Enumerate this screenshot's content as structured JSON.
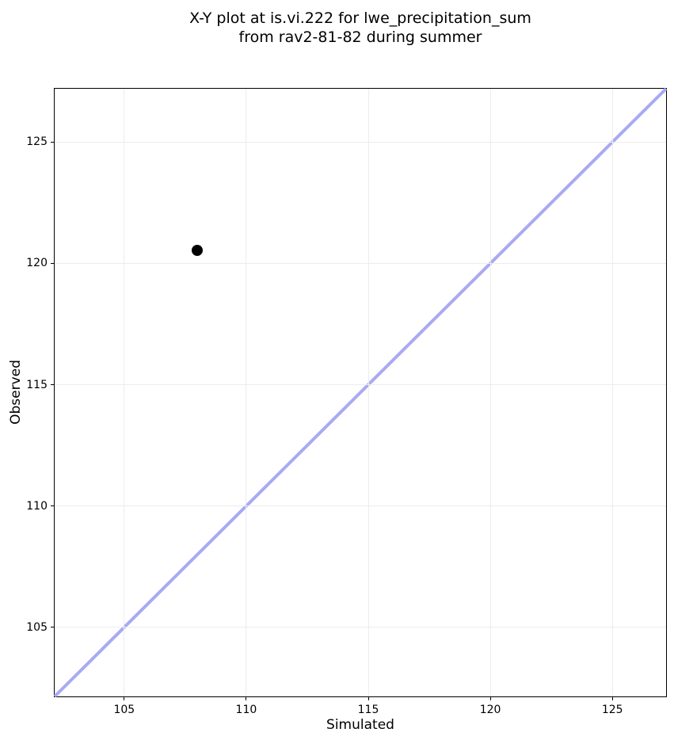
{
  "chart_data": {
    "type": "scatter",
    "title": "X-Y plot at is.vi.222 for lwe_precipitation_sum\nfrom rav2-81-82 during summer",
    "title_lines": [
      "X-Y plot at is.vi.222 for lwe_precipitation_sum",
      "from rav2-81-82 during summer"
    ],
    "xlabel": "Simulated",
    "ylabel": "Observed",
    "xlim": [
      102.15,
      127.2
    ],
    "ylim": [
      102.15,
      127.2
    ],
    "xticks": [
      105,
      110,
      115,
      120,
      125
    ],
    "yticks": [
      105,
      110,
      115,
      120,
      125
    ],
    "grid": true,
    "legend": "none",
    "series": [
      {
        "name": "observed-vs-simulated-points",
        "marker": "circle",
        "color": "#000000",
        "points": [
          {
            "x": 108.0,
            "y": 120.55
          }
        ]
      }
    ],
    "identity_line": {
      "from": [
        102.15,
        102.15
      ],
      "to": [
        127.2,
        127.2
      ],
      "color": "#a8aaf2",
      "width": 4
    },
    "colors": {
      "grid": "#ececec",
      "spine": "#000000",
      "point": "#000000",
      "line": "#a8aaf2",
      "background": "#ffffff"
    }
  }
}
